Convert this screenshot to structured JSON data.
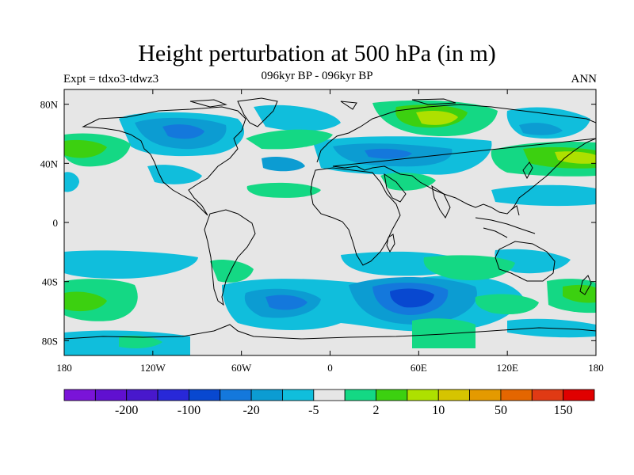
{
  "header": {
    "title": "Height perturbation at 500 hPa (in m)",
    "subtitle": "096kyr BP - 096kyr BP",
    "left_label": "Expt = tdxo3-tdwz3",
    "right_label": "ANN"
  },
  "map": {
    "projection": "cylindrical-equidistant",
    "lon_range": [
      -180,
      180
    ],
    "lat_range": [
      -90,
      90
    ],
    "lat_ticks": [
      {
        "value": 80,
        "label": "80N"
      },
      {
        "value": 40,
        "label": "40N"
      },
      {
        "value": 0,
        "label": "0"
      },
      {
        "value": -40,
        "label": "40S"
      },
      {
        "value": -80,
        "label": "80S"
      }
    ],
    "lon_ticks": [
      {
        "value": -180,
        "label": "180"
      },
      {
        "value": -120,
        "label": "120W"
      },
      {
        "value": -60,
        "label": "60W"
      },
      {
        "value": 0,
        "label": "0"
      },
      {
        "value": 60,
        "label": "60E"
      },
      {
        "value": 120,
        "label": "120E"
      },
      {
        "value": 180,
        "label": "180"
      }
    ],
    "background_color": "#e6e6e6",
    "coastline_color": "#000000"
  },
  "colorbar": {
    "colors": [
      "#7a14d8",
      "#6010d0",
      "#4818cc",
      "#2828d8",
      "#0848d0",
      "#1478dc",
      "#0c9cd2",
      "#10bedc",
      "#e6e6e6",
      "#14d884",
      "#3cd010",
      "#aee000",
      "#d6c400",
      "#e49a00",
      "#e46600",
      "#e03a14",
      "#e00000"
    ],
    "labels": [
      {
        "after_index": 1,
        "text": "-200"
      },
      {
        "after_index": 3,
        "text": "-100"
      },
      {
        "after_index": 5,
        "text": "-20"
      },
      {
        "after_index": 7,
        "text": "-5"
      },
      {
        "after_index": 9,
        "text": "2"
      },
      {
        "after_index": 11,
        "text": "10"
      },
      {
        "after_index": 13,
        "text": "50"
      },
      {
        "after_index": 15,
        "text": "150"
      }
    ]
  }
}
